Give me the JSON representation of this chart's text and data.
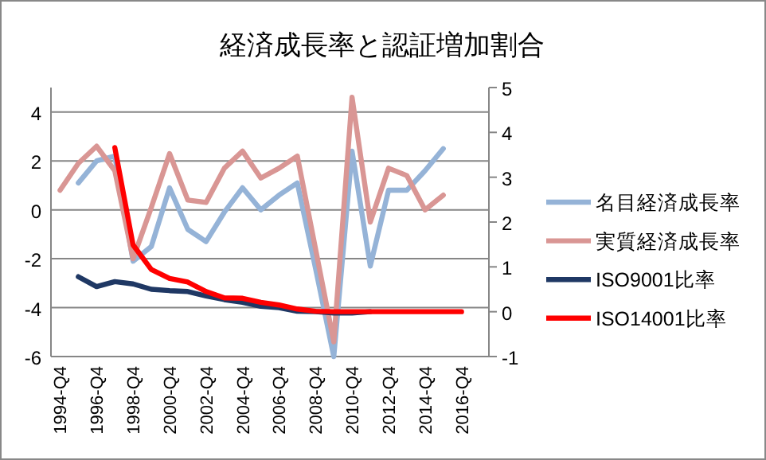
{
  "chart_data": {
    "type": "line",
    "title": "経済成長率と認証増加割合",
    "categories": [
      "1994-Q4",
      null,
      "1996-Q4",
      null,
      "1998-Q4",
      null,
      "2000-Q4",
      null,
      "2002-Q4",
      null,
      "2004-Q4",
      null,
      "2006-Q4",
      null,
      "2008-Q4",
      null,
      "2010-Q4",
      null,
      "2012-Q4",
      null,
      "2014-Q4",
      null,
      "2016-Q4",
      null
    ],
    "series": [
      {
        "name": "名目経済成長率",
        "color": "#95b3d7",
        "values": [
          null,
          1.1,
          2.0,
          2.2,
          -2.1,
          -1.5,
          0.9,
          -0.8,
          -1.3,
          -0.1,
          0.9,
          0.0,
          0.6,
          1.1,
          -2.4,
          -6.0,
          2.4,
          -2.3,
          0.8,
          0.8,
          1.6,
          2.5,
          null,
          null
        ]
      },
      {
        "name": "実質経済成長率",
        "color": "#d99694",
        "values": [
          0.8,
          1.9,
          2.6,
          1.6,
          -2.0,
          0.1,
          2.3,
          0.4,
          0.3,
          1.7,
          2.4,
          1.3,
          1.7,
          2.2,
          -1.6,
          -5.4,
          4.6,
          -0.5,
          1.7,
          1.4,
          0.0,
          0.6,
          null,
          null
        ]
      },
      {
        "name": "ISO9001比率",
        "color": "#1f3864",
        "axis": "y2",
        "values": [
          null,
          0.78,
          0.56,
          0.67,
          0.62,
          0.5,
          0.47,
          0.45,
          0.35,
          0.27,
          0.21,
          0.12,
          0.09,
          0.01,
          0.0,
          -0.03,
          -0.03,
          0.0,
          null,
          null,
          null,
          null,
          null,
          null
        ]
      },
      {
        "name": "ISO14001比率",
        "color": "#ff0000",
        "axis": "y2",
        "values": [
          null,
          null,
          null,
          3.66,
          1.49,
          0.94,
          0.74,
          0.66,
          0.45,
          0.31,
          0.3,
          0.21,
          0.15,
          0.06,
          0.01,
          0.0,
          0.0,
          0.0,
          0.0,
          0.0,
          0.0,
          0.0,
          0.0,
          null
        ]
      }
    ],
    "ylim": [
      -6,
      5
    ],
    "yticks": [
      -6,
      -4,
      -2,
      0,
      2,
      4
    ],
    "y2lim": [
      -1,
      5
    ],
    "y2ticks": [
      -1,
      0,
      1,
      2,
      3,
      4,
      5
    ],
    "grid": "y",
    "legend": "right"
  }
}
